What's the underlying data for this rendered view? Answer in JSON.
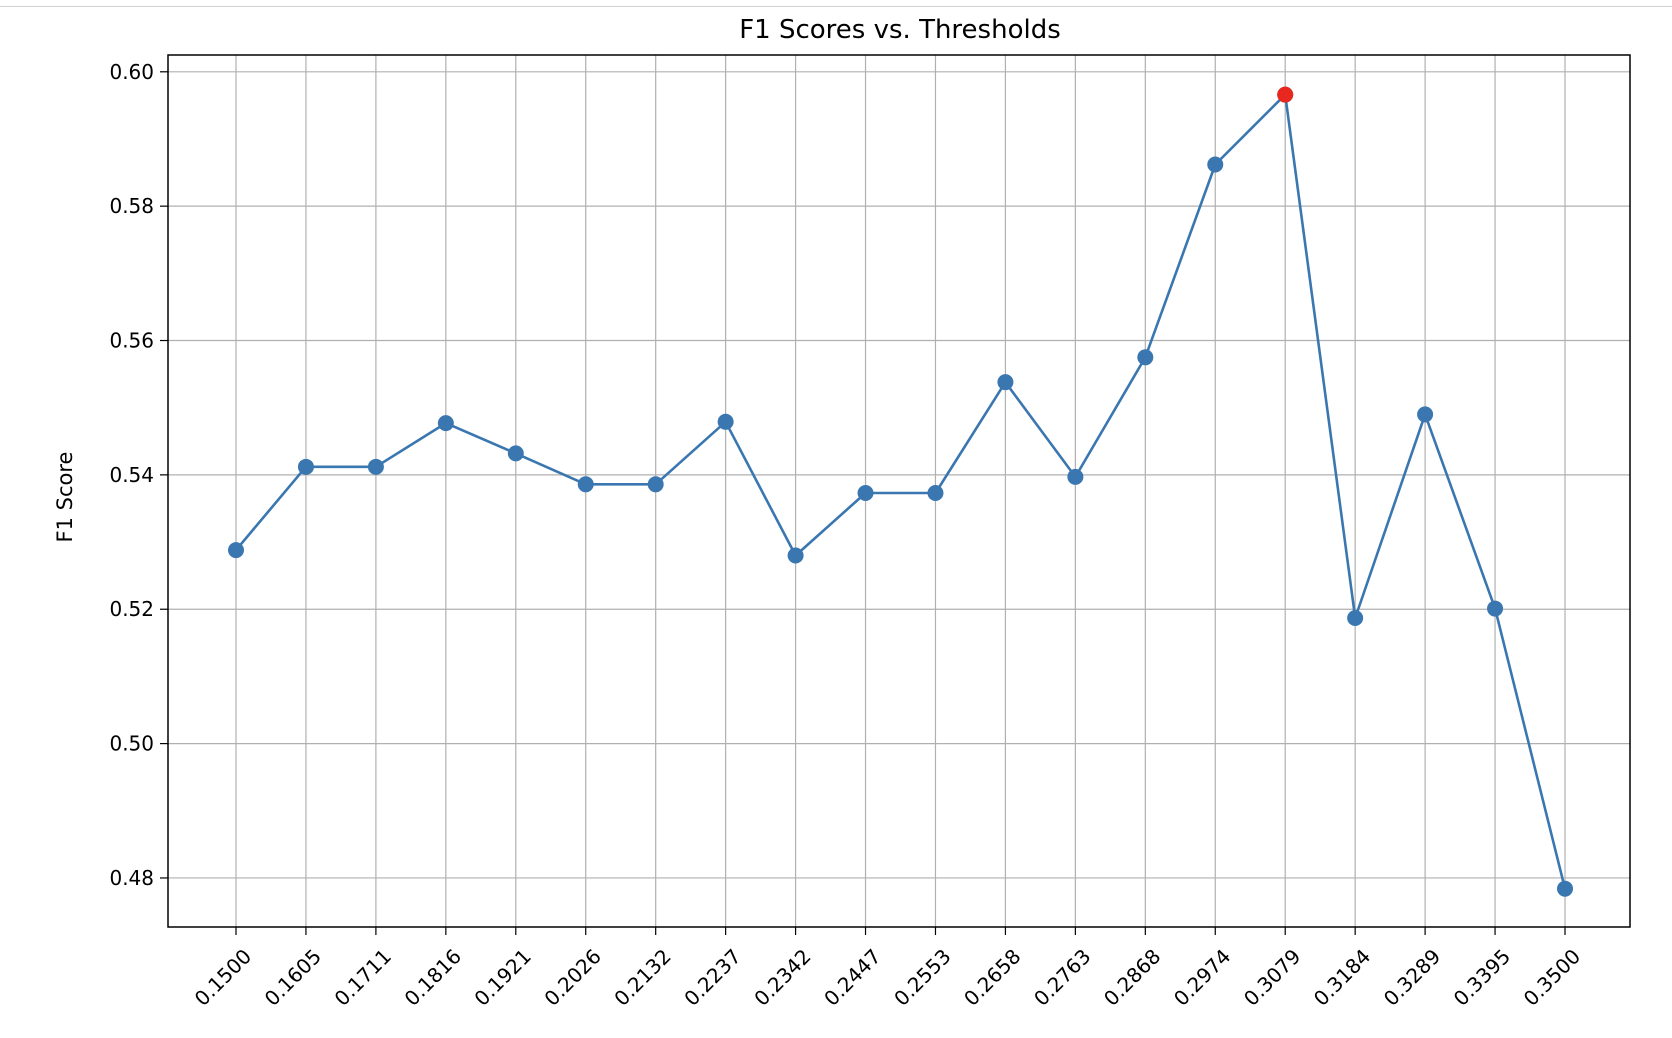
{
  "chart_data": {
    "type": "line",
    "title": "F1 Scores vs. Thresholds",
    "xlabel": "",
    "ylabel": "F1 Score",
    "categories": [
      "0.1500",
      "0.1605",
      "0.1711",
      "0.1816",
      "0.1921",
      "0.2026",
      "0.2132",
      "0.2237",
      "0.2342",
      "0.2447",
      "0.2553",
      "0.2658",
      "0.2763",
      "0.2868",
      "0.2974",
      "0.3079",
      "0.3184",
      "0.3289",
      "0.3395",
      "0.3500"
    ],
    "series": [
      {
        "values": [
          0.5288,
          0.5412,
          0.5412,
          0.5477,
          0.5432,
          0.5386,
          0.5386,
          0.5479,
          0.528,
          0.5373,
          0.5373,
          0.5538,
          0.5397,
          0.5575,
          0.5862,
          0.5966,
          0.5187,
          0.549,
          0.5201,
          0.4784
        ],
        "color": "#3a77b0"
      }
    ],
    "highlight": {
      "category": "0.3079",
      "value": 0.5966,
      "color": "#e8281e"
    },
    "yticks": [
      "0.48",
      "0.50",
      "0.52",
      "0.54",
      "0.56",
      "0.58",
      "0.60"
    ],
    "ylim": [
      0.4727,
      0.6025
    ],
    "grid": true,
    "legend": "none",
    "x_tick_rotation_deg": 45
  }
}
